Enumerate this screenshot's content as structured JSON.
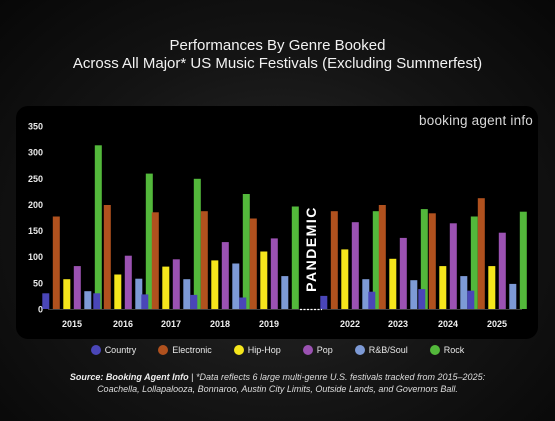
{
  "title_line1": "Performances By Genre Booked",
  "title_line2": "Across All Major* US Music Festivals (Excluding Summerfest)",
  "brand": "booking agent info",
  "annotation": "PANDEMIC",
  "source_label": "Source: Booking Agent Info",
  "source_separator": " | ",
  "source_note_1": "*Data reflects 6 large multi-genre U.S. festivals tracked from 2015–2025:",
  "source_note_2": "Coachella, Lollapalooza, Bonnaroo, Austin City Limits, Outside Lands, and Governors Ball.",
  "colors": {
    "Country": "#4a46b8",
    "Electronic": "#b0511e",
    "Hip-Hop": "#f5e61c",
    "Pop": "#9b52b2",
    "R&B/Soul": "#7d9ad6",
    "Rock": "#53b83b"
  },
  "chart_data": {
    "type": "bar",
    "categories": [
      "2015",
      "2016",
      "2017",
      "2018",
      "2019",
      "2022",
      "2023",
      "2024",
      "2025"
    ],
    "ylim": [
      0,
      350
    ],
    "yticks": [
      "0",
      "50",
      "100",
      "150",
      "200",
      "250",
      "300",
      "350"
    ],
    "series": [
      {
        "name": "Country",
        "values": [
          30,
          30,
          28,
          27,
          22,
          25,
          33,
          38,
          35
        ]
      },
      {
        "name": "Electronic",
        "values": [
          177,
          199,
          185,
          187,
          173,
          187,
          199,
          183,
          212
        ]
      },
      {
        "name": "Hip-Hop",
        "values": [
          57,
          66,
          81,
          93,
          110,
          114,
          96,
          82,
          82
        ]
      },
      {
        "name": "Pop",
        "values": [
          82,
          102,
          95,
          128,
          135,
          166,
          136,
          164,
          146
        ]
      },
      {
        "name": "R&B/Soul",
        "values": [
          34,
          58,
          57,
          87,
          63,
          57,
          55,
          63,
          48
        ]
      },
      {
        "name": "Rock",
        "values": [
          313,
          259,
          249,
          220,
          196,
          187,
          191,
          177,
          186
        ]
      }
    ],
    "grid": false,
    "legend": "bottom"
  }
}
